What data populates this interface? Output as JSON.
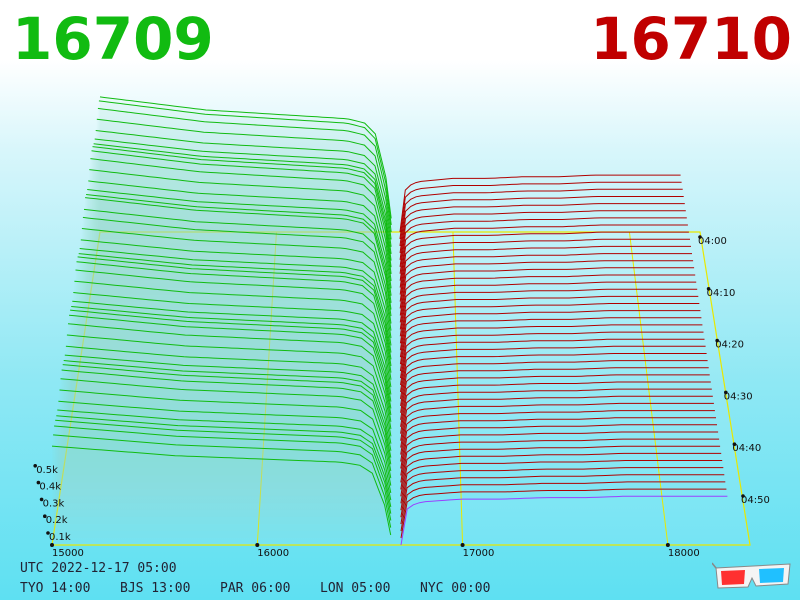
{
  "header": {
    "left_price": "16709",
    "right_price": "16710"
  },
  "colors": {
    "bid": "#11bb11",
    "ask": "#b00000",
    "grid": "#e8e800"
  },
  "footer": {
    "utc_label": "UTC 2022-12-17 05:00",
    "timezones": [
      "TYO 14:00",
      "BJS 13:00",
      "PAR 06:00",
      "LON 05:00",
      "NYC 00:00"
    ]
  },
  "chart_data": {
    "type": "area",
    "x_ticks": [
      "15000",
      "16000",
      "17000",
      "18000"
    ],
    "depth_ticks": [
      "0.1k",
      "0.2k",
      "0.3k",
      "0.4k",
      "0.5k"
    ],
    "time_ticks": [
      "04:00",
      "04:10",
      "04:20",
      "04:30",
      "04:40",
      "04:50"
    ],
    "series": [
      {
        "side": "bid",
        "description_price_range": [
          15000,
          16660
        ]
      },
      {
        "side": "ask",
        "description_price_range": [
          16700,
          18300
        ]
      }
    ],
    "bid_profile": {
      "x": [
        15000,
        15200,
        15400,
        15600,
        15800,
        16000,
        16200,
        16400,
        16500,
        16560,
        16620,
        16660
      ],
      "depth": [
        0.62,
        0.6,
        0.58,
        0.56,
        0.55,
        0.54,
        0.53,
        0.52,
        0.5,
        0.45,
        0.25,
        0.0
      ]
    },
    "ask_profile": {
      "x": [
        16700,
        16720,
        16760,
        16800,
        16900,
        17000,
        17200,
        17400,
        17600,
        17800,
        18000,
        18300
      ],
      "depth": [
        0.0,
        0.12,
        0.14,
        0.15,
        0.155,
        0.16,
        0.16,
        0.165,
        0.165,
        0.17,
        0.17,
        0.17
      ]
    },
    "icon": "3d-glasses-icon"
  }
}
